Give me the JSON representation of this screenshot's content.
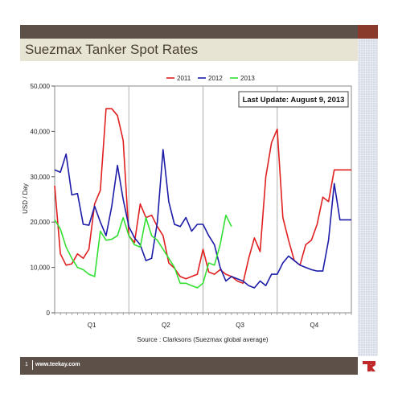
{
  "slide": {
    "title": "Suezmax Tanker Spot Rates",
    "footer_page": "1",
    "footer_url": "www.teekay.com",
    "brand_color": "#5c5048",
    "logo_icon": "teekay-logo-icon"
  },
  "chart_data": {
    "type": "line",
    "title": "",
    "xlabel": "",
    "ylabel": "USD / Day",
    "ylim": [
      0,
      50000
    ],
    "yticks": [
      "0",
      "10,000",
      "20,000",
      "30,000",
      "40,000",
      "50,000"
    ],
    "yticks_values": [
      0,
      10000,
      20000,
      30000,
      40000,
      50000
    ],
    "x_quarters": [
      "Q1",
      "Q2",
      "Q3",
      "Q4"
    ],
    "x_weeks": 52,
    "grid": "vertical quarter dividers",
    "legend_position": "top",
    "annotation": "Last Update: August 9, 2013",
    "source": "Source : Clarksons (Suezmax global average)",
    "series": [
      {
        "name": "2011",
        "color": "#e02020",
        "x": [
          1,
          2,
          3,
          4,
          5,
          6,
          7,
          8,
          9,
          10,
          11,
          12,
          13,
          14,
          15,
          16,
          17,
          18,
          19,
          20,
          21,
          22,
          23,
          24,
          25,
          26,
          27,
          28,
          29,
          30,
          31,
          32,
          33,
          34,
          35,
          36,
          37,
          38,
          39,
          40,
          41,
          42,
          43,
          44,
          45,
          46,
          47,
          48,
          49,
          50,
          51,
          52,
          53
        ],
        "values": [
          28000,
          13000,
          10500,
          10800,
          13000,
          12000,
          14000,
          24000,
          27000,
          45000,
          45000,
          43500,
          38000,
          17000,
          15500,
          24000,
          21000,
          21500,
          19000,
          17000,
          11000,
          9800,
          8000,
          7500,
          8000,
          8500,
          14000,
          9000,
          8500,
          9500,
          8500,
          8000,
          7000,
          6500,
          12000,
          16500,
          13500,
          30000,
          37500,
          40500,
          21000,
          16000,
          11500,
          10500,
          15000,
          16000,
          19500,
          25500,
          24500,
          31500,
          31500,
          31500,
          31500
        ]
      },
      {
        "name": "2012",
        "color": "#1c1ca8",
        "x": [
          1,
          2,
          3,
          4,
          5,
          6,
          7,
          8,
          9,
          10,
          11,
          12,
          13,
          14,
          15,
          16,
          17,
          18,
          19,
          20,
          21,
          22,
          23,
          24,
          25,
          26,
          27,
          28,
          29,
          30,
          31,
          32,
          33,
          34,
          35,
          36,
          37,
          38,
          39,
          40,
          41,
          42,
          43,
          44,
          45,
          46,
          47,
          48,
          49,
          50,
          51,
          52,
          53
        ],
        "values": [
          31500,
          31000,
          35000,
          26000,
          26300,
          19500,
          19300,
          23500,
          20000,
          17000,
          23500,
          32500,
          25000,
          19000,
          16500,
          15000,
          11500,
          12000,
          20000,
          36000,
          24500,
          19500,
          19000,
          21000,
          18000,
          19500,
          19500,
          17000,
          15000,
          10000,
          7000,
          8000,
          7500,
          7000,
          6000,
          5500,
          7000,
          6000,
          8500,
          8500,
          11000,
          12500,
          11500,
          10500,
          10000,
          9500,
          9200,
          9200,
          16000,
          28500,
          20500,
          20500,
          20500
        ]
      },
      {
        "name": "2013",
        "color": "#33e033",
        "x": [
          1,
          2,
          3,
          4,
          5,
          6,
          7,
          8,
          9,
          10,
          11,
          12,
          13,
          14,
          15,
          16,
          17,
          18,
          19,
          20,
          21,
          22,
          23,
          24,
          25,
          26,
          27,
          28,
          29,
          30,
          31,
          32
        ],
        "values": [
          20500,
          18500,
          14500,
          12000,
          10000,
          9500,
          8500,
          8000,
          18000,
          16000,
          16200,
          17000,
          21000,
          17000,
          15000,
          14500,
          21000,
          17000,
          16000,
          14000,
          12000,
          10000,
          6500,
          6500,
          6000,
          5500,
          6500,
          11000,
          10500,
          15000,
          21500,
          19000
        ]
      }
    ]
  }
}
